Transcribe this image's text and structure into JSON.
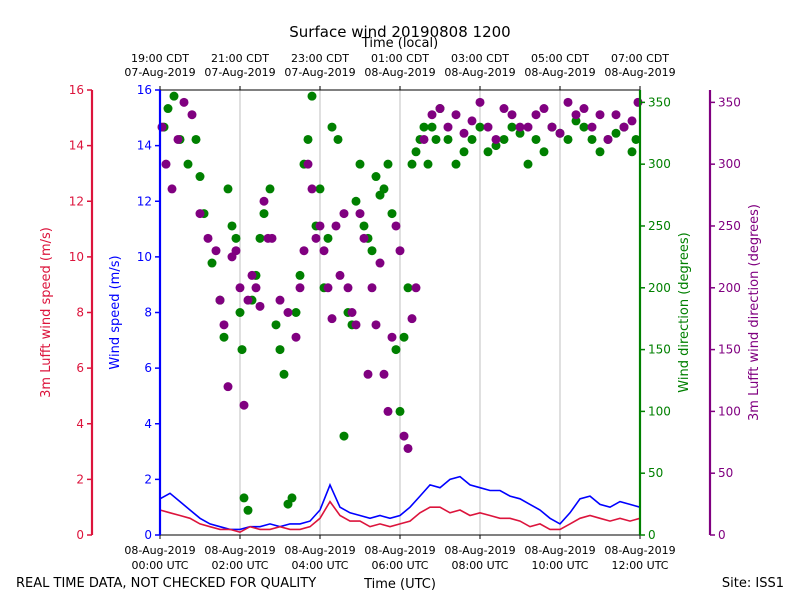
{
  "chart_data": {
    "type": "scatter",
    "title": "Surface wind 20190808 1200",
    "top_xlabel": "Time (local)",
    "xlabel": "Time (UTC)",
    "footer_left": "REAL TIME DATA, NOT CHECKED FOR QUALITY",
    "footer_right": "Site: ISS1",
    "xlim_hours": [
      0,
      12
    ],
    "grid": true,
    "utc_ticks": [
      {
        "hour": 0,
        "date": "08-Aug-2019",
        "time": "00:00 UTC"
      },
      {
        "hour": 2,
        "date": "08-Aug-2019",
        "time": "02:00 UTC"
      },
      {
        "hour": 4,
        "date": "08-Aug-2019",
        "time": "04:00 UTC"
      },
      {
        "hour": 6,
        "date": "08-Aug-2019",
        "time": "06:00 UTC"
      },
      {
        "hour": 8,
        "date": "08-Aug-2019",
        "time": "08:00 UTC"
      },
      {
        "hour": 10,
        "date": "08-Aug-2019",
        "time": "10:00 UTC"
      },
      {
        "hour": 12,
        "date": "08-Aug-2019",
        "time": "12:00 UTC"
      }
    ],
    "local_ticks": [
      {
        "hour": 0,
        "time": "19:00 CDT",
        "date": "07-Aug-2019"
      },
      {
        "hour": 2,
        "time": "21:00 CDT",
        "date": "07-Aug-2019"
      },
      {
        "hour": 4,
        "time": "23:00 CDT",
        "date": "07-Aug-2019"
      },
      {
        "hour": 6,
        "time": "01:00 CDT",
        "date": "08-Aug-2019"
      },
      {
        "hour": 8,
        "time": "03:00 CDT",
        "date": "08-Aug-2019"
      },
      {
        "hour": 10,
        "time": "05:00 CDT",
        "date": "08-Aug-2019"
      },
      {
        "hour": 12,
        "time": "07:00 CDT",
        "date": "08-Aug-2019"
      }
    ],
    "axes": [
      {
        "id": "lufft_speed",
        "label": "3m Lufft wind speed (m/s)",
        "color": "#dc143c",
        "lim": [
          0,
          16
        ],
        "ticks": [
          0,
          2,
          4,
          6,
          8,
          10,
          12,
          14,
          16
        ]
      },
      {
        "id": "speed",
        "label": "Wind speed (m/s)",
        "color": "#0000ff",
        "lim": [
          0,
          16
        ],
        "ticks": [
          0,
          2,
          4,
          6,
          8,
          10,
          12,
          14,
          16
        ]
      },
      {
        "id": "direction",
        "label": "Wind direction (degrees)",
        "color": "#008000",
        "lim": [
          0,
          360
        ],
        "ticks": [
          0,
          50,
          100,
          150,
          200,
          250,
          300,
          350
        ]
      },
      {
        "id": "lufft_direction",
        "label": "3m Lufft wind direction (degrees)",
        "color": "#800080",
        "lim": [
          0,
          360
        ],
        "ticks": [
          0,
          50,
          100,
          150,
          200,
          250,
          300,
          350
        ]
      }
    ],
    "series": [
      {
        "name": "Wind speed",
        "axis": "speed",
        "kind": "line",
        "color": "#0000ff",
        "x": [
          0,
          0.25,
          0.5,
          0.75,
          1,
          1.25,
          1.5,
          1.75,
          2,
          2.25,
          2.5,
          2.75,
          3,
          3.25,
          3.5,
          3.75,
          4,
          4.25,
          4.5,
          4.75,
          5,
          5.25,
          5.5,
          5.75,
          6,
          6.25,
          6.5,
          6.75,
          7,
          7.25,
          7.5,
          7.75,
          8,
          8.25,
          8.5,
          8.75,
          9,
          9.25,
          9.5,
          9.75,
          10,
          10.25,
          10.5,
          10.75,
          11,
          11.25,
          11.5,
          11.75,
          12
        ],
        "y": [
          1.3,
          1.5,
          1.2,
          0.9,
          0.6,
          0.4,
          0.3,
          0.2,
          0.2,
          0.3,
          0.3,
          0.4,
          0.3,
          0.4,
          0.4,
          0.5,
          0.9,
          1.8,
          1.0,
          0.8,
          0.7,
          0.6,
          0.7,
          0.6,
          0.7,
          1.0,
          1.4,
          1.8,
          1.7,
          2.0,
          2.1,
          1.8,
          1.7,
          1.6,
          1.6,
          1.4,
          1.3,
          1.1,
          0.9,
          0.6,
          0.4,
          0.8,
          1.3,
          1.4,
          1.1,
          1.0,
          1.2,
          1.1,
          1.0
        ]
      },
      {
        "name": "3m Lufft wind speed",
        "axis": "lufft_speed",
        "kind": "line",
        "color": "#dc143c",
        "x": [
          0,
          0.25,
          0.5,
          0.75,
          1,
          1.25,
          1.5,
          1.75,
          2,
          2.25,
          2.5,
          2.75,
          3,
          3.25,
          3.5,
          3.75,
          4,
          4.25,
          4.5,
          4.75,
          5,
          5.25,
          5.5,
          5.75,
          6,
          6.25,
          6.5,
          6.75,
          7,
          7.25,
          7.5,
          7.75,
          8,
          8.25,
          8.5,
          8.75,
          9,
          9.25,
          9.5,
          9.75,
          10,
          10.25,
          10.5,
          10.75,
          11,
          11.25,
          11.5,
          11.75,
          12
        ],
        "y": [
          0.9,
          0.8,
          0.7,
          0.6,
          0.4,
          0.3,
          0.2,
          0.2,
          0.1,
          0.3,
          0.2,
          0.2,
          0.3,
          0.2,
          0.2,
          0.3,
          0.6,
          1.2,
          0.7,
          0.5,
          0.5,
          0.3,
          0.4,
          0.3,
          0.4,
          0.5,
          0.8,
          1.0,
          1.0,
          0.8,
          0.9,
          0.7,
          0.8,
          0.7,
          0.6,
          0.6,
          0.5,
          0.3,
          0.4,
          0.2,
          0.2,
          0.4,
          0.6,
          0.7,
          0.6,
          0.5,
          0.6,
          0.5,
          0.6
        ]
      },
      {
        "name": "Wind direction",
        "axis": "direction",
        "kind": "scatter",
        "color": "#008000",
        "x": [
          0.1,
          0.2,
          0.35,
          0.5,
          0.7,
          0.9,
          1.0,
          1.1,
          1.3,
          1.5,
          1.6,
          1.7,
          1.8,
          1.9,
          2.0,
          2.05,
          2.1,
          2.2,
          2.3,
          2.4,
          2.5,
          2.6,
          2.75,
          2.9,
          3.0,
          3.1,
          3.2,
          3.3,
          3.4,
          3.5,
          3.6,
          3.7,
          3.8,
          3.9,
          4.0,
          4.1,
          4.2,
          4.3,
          4.45,
          4.6,
          4.7,
          4.8,
          4.9,
          5.0,
          5.1,
          5.2,
          5.3,
          5.4,
          5.5,
          5.6,
          5.7,
          5.8,
          5.9,
          6.0,
          6.1,
          6.2,
          6.3,
          6.4,
          6.5,
          6.6,
          6.7,
          6.8,
          6.9,
          7.0,
          7.2,
          7.4,
          7.6,
          7.8,
          8.0,
          8.2,
          8.4,
          8.6,
          8.8,
          9.0,
          9.2,
          9.4,
          9.6,
          9.8,
          10.0,
          10.2,
          10.4,
          10.6,
          10.8,
          11.0,
          11.2,
          11.4,
          11.6,
          11.8,
          11.9
        ],
        "y": [
          330,
          345,
          355,
          320,
          300,
          320,
          290,
          260,
          220,
          190,
          160,
          280,
          250,
          240,
          180,
          150,
          30,
          20,
          190,
          210,
          240,
          260,
          280,
          170,
          150,
          130,
          25,
          30,
          180,
          210,
          300,
          320,
          355,
          250,
          280,
          200,
          240,
          330,
          320,
          80,
          180,
          170,
          270,
          300,
          250,
          240,
          230,
          290,
          275,
          280,
          300,
          260,
          150,
          100,
          160,
          200,
          300,
          310,
          320,
          330,
          300,
          330,
          320,
          345,
          320,
          300,
          310,
          320,
          330,
          310,
          315,
          320,
          330,
          325,
          300,
          320,
          310,
          330,
          325,
          320,
          335,
          330,
          320,
          310,
          320,
          325,
          330,
          310,
          320
        ]
      },
      {
        "name": "3m Lufft wind direction",
        "axis": "lufft_direction",
        "kind": "scatter",
        "color": "#800080",
        "x": [
          0.05,
          0.15,
          0.3,
          0.45,
          0.6,
          0.8,
          1.0,
          1.2,
          1.4,
          1.5,
          1.6,
          1.7,
          1.8,
          1.9,
          2.0,
          2.1,
          2.2,
          2.3,
          2.4,
          2.5,
          2.6,
          2.7,
          2.8,
          3.0,
          3.2,
          3.4,
          3.5,
          3.6,
          3.7,
          3.8,
          3.9,
          4.0,
          4.1,
          4.2,
          4.3,
          4.4,
          4.5,
          4.6,
          4.7,
          4.8,
          4.9,
          5.0,
          5.1,
          5.2,
          5.3,
          5.4,
          5.5,
          5.6,
          5.7,
          5.8,
          5.9,
          6.0,
          6.1,
          6.2,
          6.3,
          6.4,
          6.6,
          6.8,
          7.0,
          7.2,
          7.4,
          7.6,
          7.8,
          8.0,
          8.2,
          8.4,
          8.6,
          8.8,
          9.0,
          9.2,
          9.4,
          9.6,
          9.8,
          10.0,
          10.2,
          10.4,
          10.6,
          10.8,
          11.0,
          11.2,
          11.4,
          11.6,
          11.8,
          11.95
        ],
        "y": [
          330,
          300,
          280,
          320,
          350,
          340,
          260,
          240,
          230,
          190,
          170,
          120,
          225,
          230,
          200,
          105,
          190,
          210,
          200,
          185,
          270,
          240,
          240,
          190,
          180,
          160,
          200,
          230,
          300,
          280,
          240,
          250,
          230,
          200,
          175,
          250,
          210,
          260,
          200,
          180,
          170,
          260,
          240,
          130,
          200,
          170,
          220,
          130,
          100,
          160,
          250,
          230,
          80,
          70,
          175,
          200,
          320,
          340,
          345,
          330,
          340,
          325,
          335,
          350,
          330,
          320,
          345,
          340,
          330,
          330,
          340,
          345,
          330,
          325,
          350,
          340,
          345,
          330,
          340,
          320,
          340,
          330,
          335,
          350
        ]
      }
    ]
  }
}
